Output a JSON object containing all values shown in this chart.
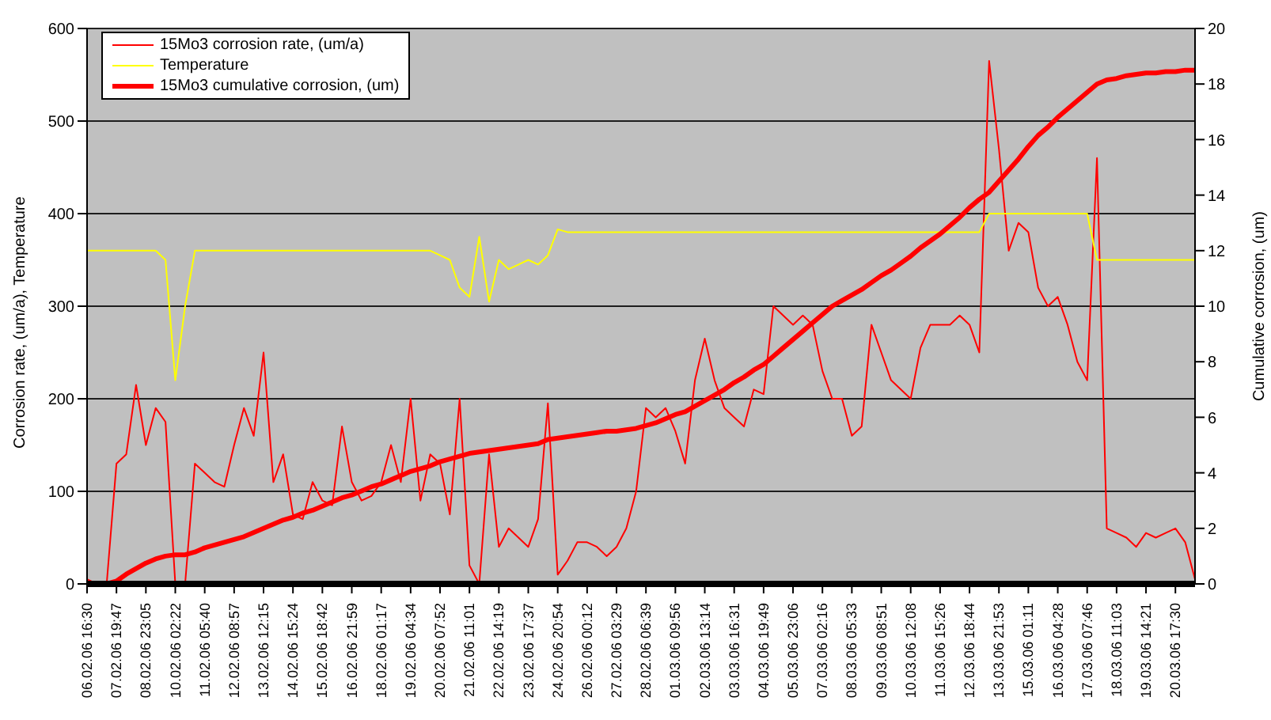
{
  "chart_data": {
    "type": "line",
    "categories": [
      "06.02.06 16:30",
      null,
      null,
      "07.02.06 19:47",
      null,
      null,
      "08.02.06 23:05",
      null,
      null,
      "10.02.06 02:22",
      null,
      null,
      "11.02.06 05:40",
      null,
      null,
      "12.02.06 08:57",
      null,
      null,
      "13.02.06 12:15",
      null,
      null,
      "14.02.06 15:24",
      null,
      null,
      "15.02.06 18:42",
      null,
      null,
      "16.02.06 21:59",
      null,
      null,
      "18.02.06 01:17",
      null,
      null,
      "19.02.06 04:34",
      null,
      null,
      "20.02.06 07:52",
      null,
      null,
      "21.02.06 11:01",
      null,
      null,
      "22.02.06 14:19",
      null,
      null,
      "23.02.06 17:37",
      null,
      null,
      "24.02.06 20:54",
      null,
      null,
      "26.02.06 00:12",
      null,
      null,
      "27.02.06 03:29",
      null,
      null,
      "28.02.06 06:39",
      null,
      null,
      "01.03.06 09:56",
      null,
      null,
      "02.03.06 13:14",
      null,
      null,
      "03.03.06 16:31",
      null,
      null,
      "04.03.06 19:49",
      null,
      null,
      "05.03.06 23:06",
      null,
      null,
      "07.03.06 02:16",
      null,
      null,
      "08.03.06 05:33",
      null,
      null,
      "09.03.06 08:51",
      null,
      null,
      "10.03.06 12:08",
      null,
      null,
      "11.03.06 15:26",
      null,
      null,
      "12.03.06 18:44",
      null,
      null,
      "13.03.06 21:53",
      null,
      null,
      "15.03.06 01:11",
      null,
      null,
      "16.03.06 04:28",
      null,
      null,
      "17.03.06 07:46",
      null,
      null,
      "18.03.06 11:03",
      null,
      null,
      "19.03.06 14:21",
      null,
      null,
      "20.03.06 17:30",
      null,
      null
    ],
    "series": [
      {
        "name": "15Mo3 corrosion rate, (um/a)",
        "color": "#ff0000",
        "values": [
          5,
          0,
          0,
          130,
          140,
          215,
          150,
          190,
          175,
          0,
          0,
          130,
          120,
          110,
          105,
          150,
          190,
          160,
          250,
          110,
          140,
          75,
          70,
          110,
          90,
          85,
          170,
          110,
          90,
          95,
          110,
          150,
          110,
          200,
          90,
          140,
          130,
          75,
          200,
          20,
          0,
          140,
          40,
          60,
          50,
          40,
          70,
          195,
          10,
          25,
          45,
          45,
          40,
          30,
          40,
          60,
          100,
          190,
          180,
          190,
          165,
          130,
          220,
          265,
          220,
          190,
          180,
          170,
          210,
          205,
          300,
          290,
          280,
          290,
          280,
          230,
          200,
          200,
          160,
          170,
          280,
          250,
          220,
          210,
          200,
          255,
          280,
          280,
          280,
          290,
          280,
          250,
          565,
          470,
          360,
          390,
          380,
          320,
          300,
          310,
          280,
          240,
          220,
          460,
          60,
          55,
          50,
          40,
          55,
          50,
          55,
          60,
          45,
          5
        ]
      },
      {
        "name": "Temperature",
        "color": "#ffff00",
        "values": [
          360,
          360,
          360,
          360,
          360,
          360,
          360,
          360,
          350,
          220,
          300,
          360,
          360,
          360,
          360,
          360,
          360,
          360,
          360,
          360,
          360,
          360,
          360,
          360,
          360,
          360,
          360,
          360,
          360,
          360,
          360,
          360,
          360,
          360,
          360,
          360,
          355,
          350,
          320,
          310,
          375,
          305,
          350,
          340,
          345,
          350,
          345,
          355,
          383,
          380,
          380,
          380,
          380,
          380,
          380,
          380,
          380,
          380,
          380,
          380,
          380,
          380,
          380,
          380,
          380,
          380,
          380,
          380,
          380,
          380,
          380,
          380,
          380,
          380,
          380,
          380,
          380,
          380,
          380,
          380,
          380,
          380,
          380,
          380,
          380,
          380,
          380,
          380,
          380,
          380,
          380,
          380,
          400,
          400,
          400,
          400,
          400,
          400,
          400,
          400,
          400,
          400,
          400,
          350,
          350,
          350,
          350,
          350,
          350,
          350,
          350,
          350,
          350,
          350
        ]
      },
      {
        "name": "15Mo3 cumulative corrosion, (um)",
        "color": "#ff0000",
        "axis": "y2",
        "values": [
          0,
          0,
          0,
          0.1,
          0.35,
          0.55,
          0.75,
          0.9,
          1.0,
          1.05,
          1.05,
          1.15,
          1.3,
          1.4,
          1.5,
          1.6,
          1.7,
          1.85,
          2.0,
          2.15,
          2.3,
          2.4,
          2.55,
          2.65,
          2.8,
          2.95,
          3.1,
          3.2,
          3.35,
          3.5,
          3.6,
          3.75,
          3.9,
          4.05,
          4.15,
          4.25,
          4.4,
          4.5,
          4.6,
          4.7,
          4.75,
          4.8,
          4.85,
          4.9,
          4.95,
          5.0,
          5.05,
          5.2,
          5.25,
          5.3,
          5.35,
          5.4,
          5.45,
          5.5,
          5.5,
          5.55,
          5.6,
          5.7,
          5.8,
          5.95,
          6.1,
          6.2,
          6.4,
          6.6,
          6.8,
          7.0,
          7.25,
          7.45,
          7.7,
          7.9,
          8.2,
          8.5,
          8.8,
          9.1,
          9.4,
          9.7,
          10.0,
          10.2,
          10.4,
          10.6,
          10.85,
          11.1,
          11.3,
          11.55,
          11.8,
          12.1,
          12.35,
          12.6,
          12.9,
          13.2,
          13.55,
          13.85,
          14.1,
          14.5,
          14.9,
          15.3,
          15.75,
          16.15,
          16.45,
          16.8,
          17.1,
          17.4,
          17.7,
          18.0,
          18.15,
          18.2,
          18.3,
          18.35,
          18.4,
          18.4,
          18.45,
          18.45,
          18.5,
          18.5
        ]
      }
    ],
    "ylabel": "Corrosion rate, (um/a), Temperature",
    "y2label": "Cumulative corrosion, (um)",
    "ylim": [
      0,
      600
    ],
    "yticks": [
      0,
      100,
      200,
      300,
      400,
      500,
      600
    ],
    "y2lim": [
      0,
      20
    ],
    "y2ticks": [
      0,
      2,
      4,
      6,
      8,
      10,
      12,
      14,
      16,
      18,
      20
    ],
    "grid": "y",
    "legend": "top left",
    "marker": "none",
    "line_style": "solid"
  }
}
